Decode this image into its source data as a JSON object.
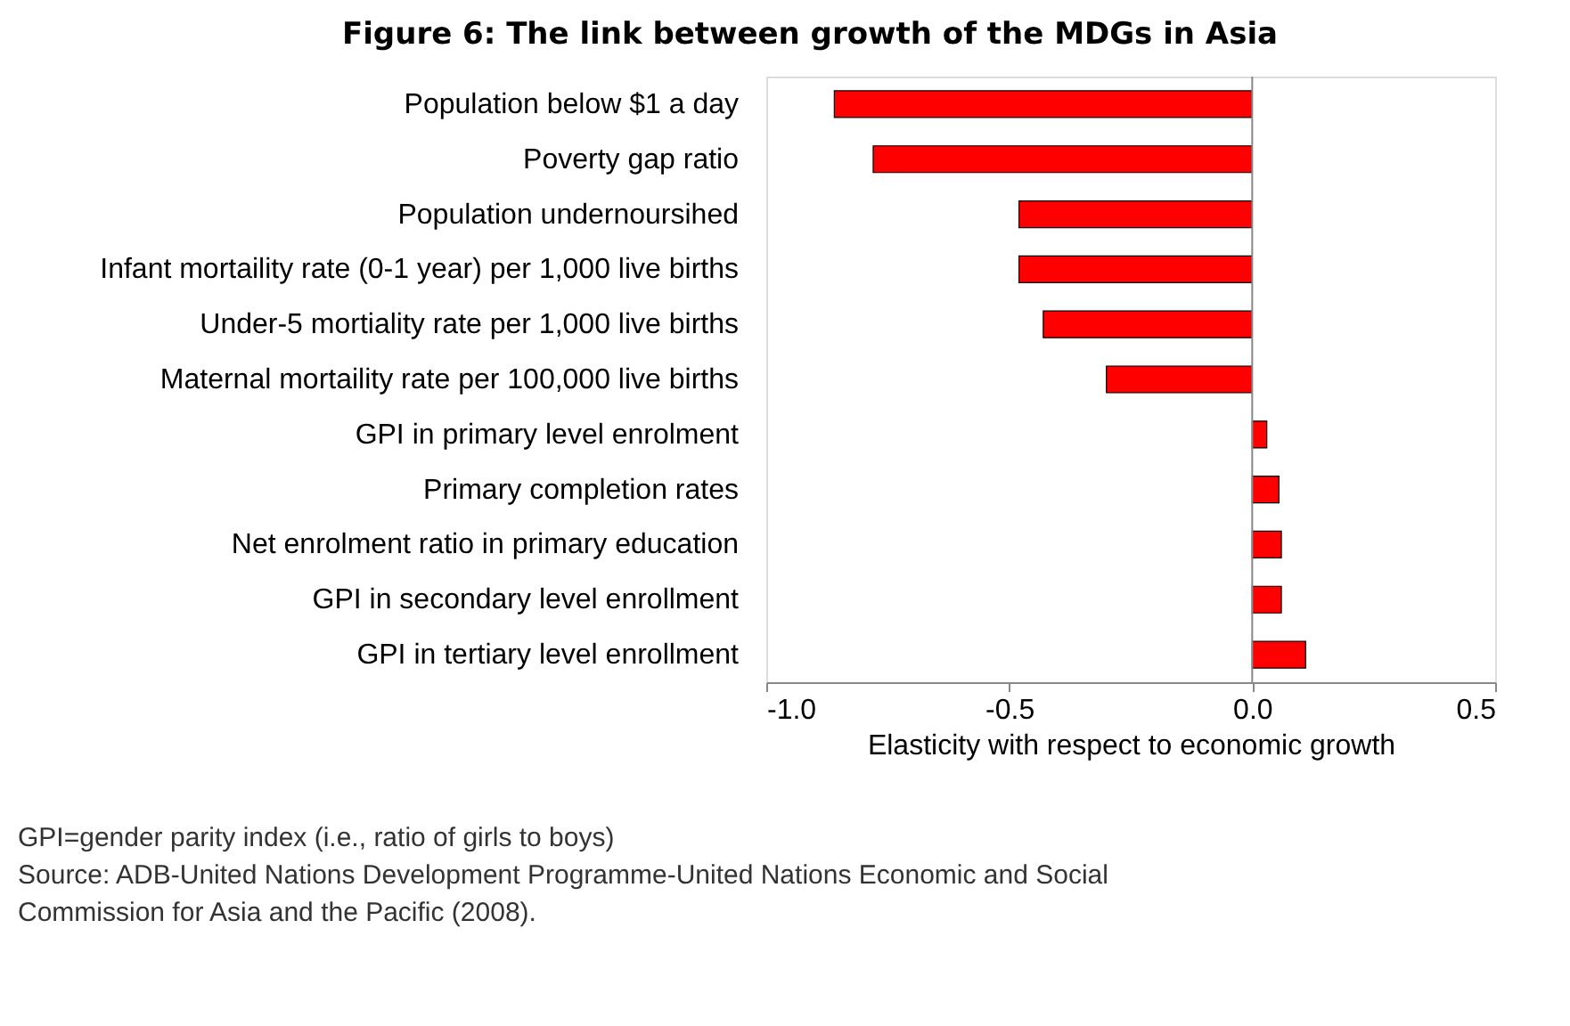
{
  "chart_data": {
    "type": "bar",
    "orientation": "horizontal",
    "title": "Figure 6: The link between growth of the MDGs in Asia",
    "xlabel": "Elasticity with respect to economic growth",
    "categories": [
      "Population below $1 a day",
      "Poverty gap ratio",
      "Population undernoursihed",
      "Infant mortaility rate (0-1 year) per 1,000 live births",
      "Under-5 mortiality rate per 1,000 live births",
      "Maternal mortaility rate per 100,000 live births",
      "GPI in primary level enrolment",
      "Primary completion rates",
      "Net enrolment ratio in primary education",
      "GPI in secondary level enrollment",
      "GPI in tertiary level enrollment"
    ],
    "values": [
      -0.86,
      -0.78,
      -0.48,
      -0.48,
      -0.43,
      -0.3,
      0.03,
      0.055,
      0.06,
      0.06,
      0.11
    ],
    "color": "#ff0000",
    "xlim": [
      -1.0,
      0.5
    ],
    "xticks": [
      {
        "value": -1.0,
        "label": "-1.0"
      },
      {
        "value": -0.5,
        "label": "-0.5"
      },
      {
        "value": 0,
        "label": "0.0"
      },
      {
        "value": 0.5,
        "label": "0.5"
      }
    ],
    "annotations": [
      "GPI=gender parity index (i.e., ratio of girls to boys)",
      "Source: ADB-United Nations Development Programme-United Nations Economic and Social Commission for Asia and the Pacific (2008)."
    ]
  }
}
